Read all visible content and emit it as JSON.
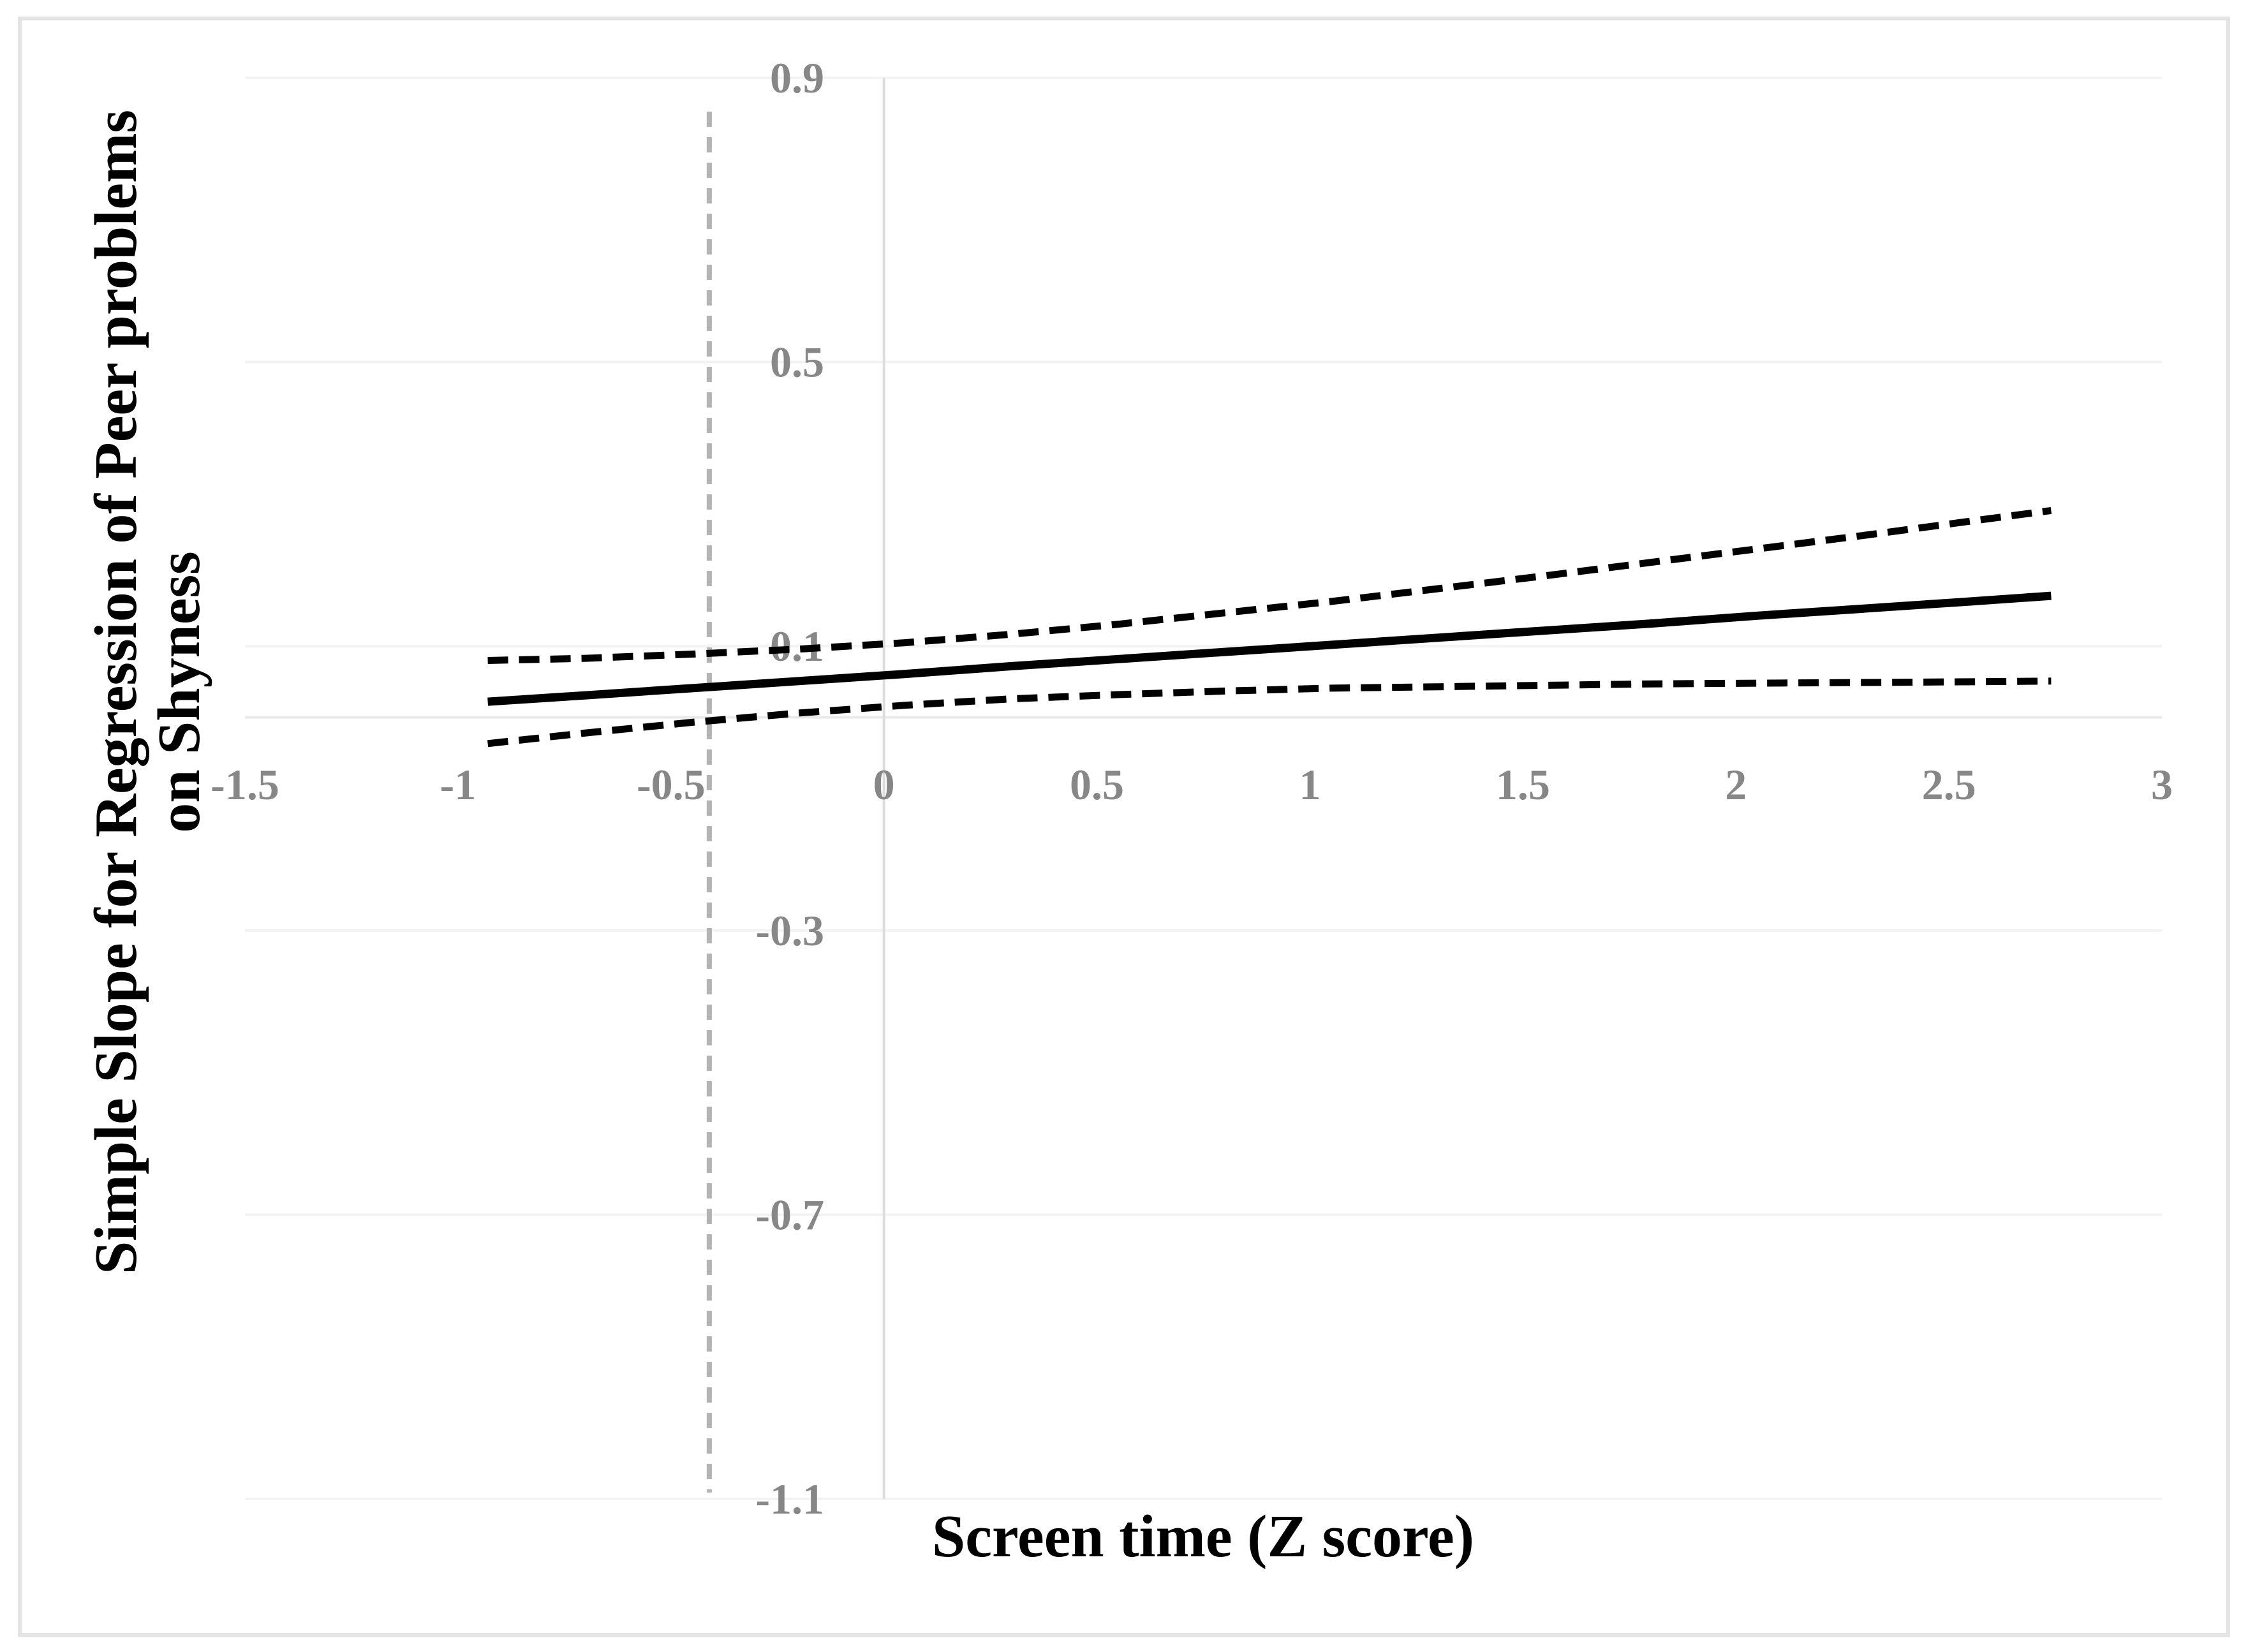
{
  "figure": {
    "y_axis_title_line1": "Simple Slope for Regression of Peer problems",
    "y_axis_title_line2": "on Shyness",
    "x_axis_title": "Screen time (Z score)"
  },
  "chart_data": {
    "type": "line",
    "title": "",
    "xlabel": "Screen time (Z score)",
    "ylabel": "Simple Slope for Regression of Peer problems on Shyness",
    "xlim": [
      -1.5,
      3
    ],
    "ylim": [
      -1.1,
      0.9
    ],
    "x_ticks": [
      -1.5,
      -1,
      -0.5,
      0,
      0.5,
      1,
      1.5,
      2,
      2.5,
      3
    ],
    "x_tick_labels": [
      "-1.5",
      "-1",
      "-0.5",
      "0",
      "0.5",
      "1",
      "1.5",
      "2",
      "2.5",
      "3"
    ],
    "y_ticks": [
      0.9,
      0.5,
      0.1,
      -0.3,
      -0.7,
      -1.1
    ],
    "y_tick_labels": [
      "0.9",
      "0.5",
      "0.1",
      "-0.3",
      "-0.7",
      "-1.1"
    ],
    "grid": "horizontal-only",
    "legend": "none",
    "x": [
      -0.93,
      -0.7,
      -0.45,
      -0.2,
      0.05,
      0.3,
      0.55,
      0.8,
      1.05,
      1.3,
      1.55,
      1.8,
      2.05,
      2.3,
      2.55,
      2.74
    ],
    "series": [
      {
        "name": "simple-slope-estimate",
        "style": "solid",
        "y": [
          0.022,
          0.031,
          0.041,
          0.051,
          0.061,
          0.072,
          0.082,
          0.092,
          0.102,
          0.112,
          0.122,
          0.132,
          0.143,
          0.153,
          0.163,
          0.171
        ]
      },
      {
        "name": "upper-95ci-bound",
        "style": "dashed",
        "y": [
          0.08,
          0.083,
          0.089,
          0.096,
          0.105,
          0.117,
          0.131,
          0.147,
          0.163,
          0.181,
          0.199,
          0.218,
          0.237,
          0.256,
          0.276,
          0.291
        ]
      },
      {
        "name": "lower-95ci-bound",
        "style": "dashed",
        "y": [
          -0.037,
          -0.022,
          -0.007,
          0.006,
          0.017,
          0.026,
          0.032,
          0.037,
          0.041,
          0.043,
          0.045,
          0.047,
          0.048,
          0.049,
          0.05,
          0.051
        ]
      }
    ],
    "vertical_dashed_line_x": -0.41,
    "colors": {
      "line": "#000000",
      "ci_line": "#000000",
      "reference_line": "#b3b3b3",
      "gridline": "#f3f3f3",
      "zero_line": "#e9e9e9",
      "axis_line": "#dddddd",
      "tick_label": "#878787",
      "title": "#000000",
      "border": "#e4e4e4",
      "background": "#ffffff"
    }
  }
}
